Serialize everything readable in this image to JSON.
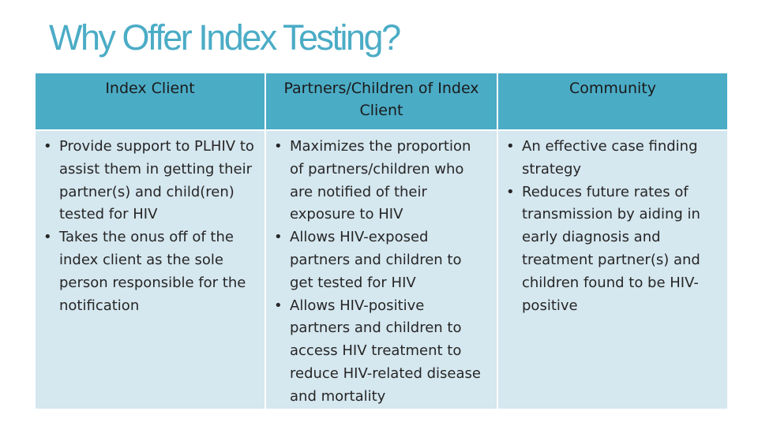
{
  "slide": {
    "title": "Why Offer Index Testing?"
  },
  "table": {
    "columns": [
      {
        "header": "Index Client",
        "bullets": [
          "Provide support to PLHIV to assist them in getting their partner(s) and child(ren) tested for HIV",
          "Takes the onus off of the index client as the sole person responsible for the notification"
        ]
      },
      {
        "header": "Partners/Children of Index Client",
        "bullets": [
          "Maximizes the proportion of partners/children who are notified of their exposure to HIV",
          "Allows HIV-exposed partners and children to get tested for HIV",
          "Allows HIV-positive partners and children to access HIV treatment to reduce HIV-related disease and mortality"
        ]
      },
      {
        "header": "Community",
        "bullets": [
          "An effective case finding strategy",
          "Reduces future rates of transmission by aiding in early diagnosis and treatment partner(s) and children found to be HIV-positive"
        ]
      }
    ]
  },
  "colors": {
    "accent": "#4bacc6",
    "header_fill": "#4bacc6",
    "body_fill": "#d5e7ef"
  }
}
